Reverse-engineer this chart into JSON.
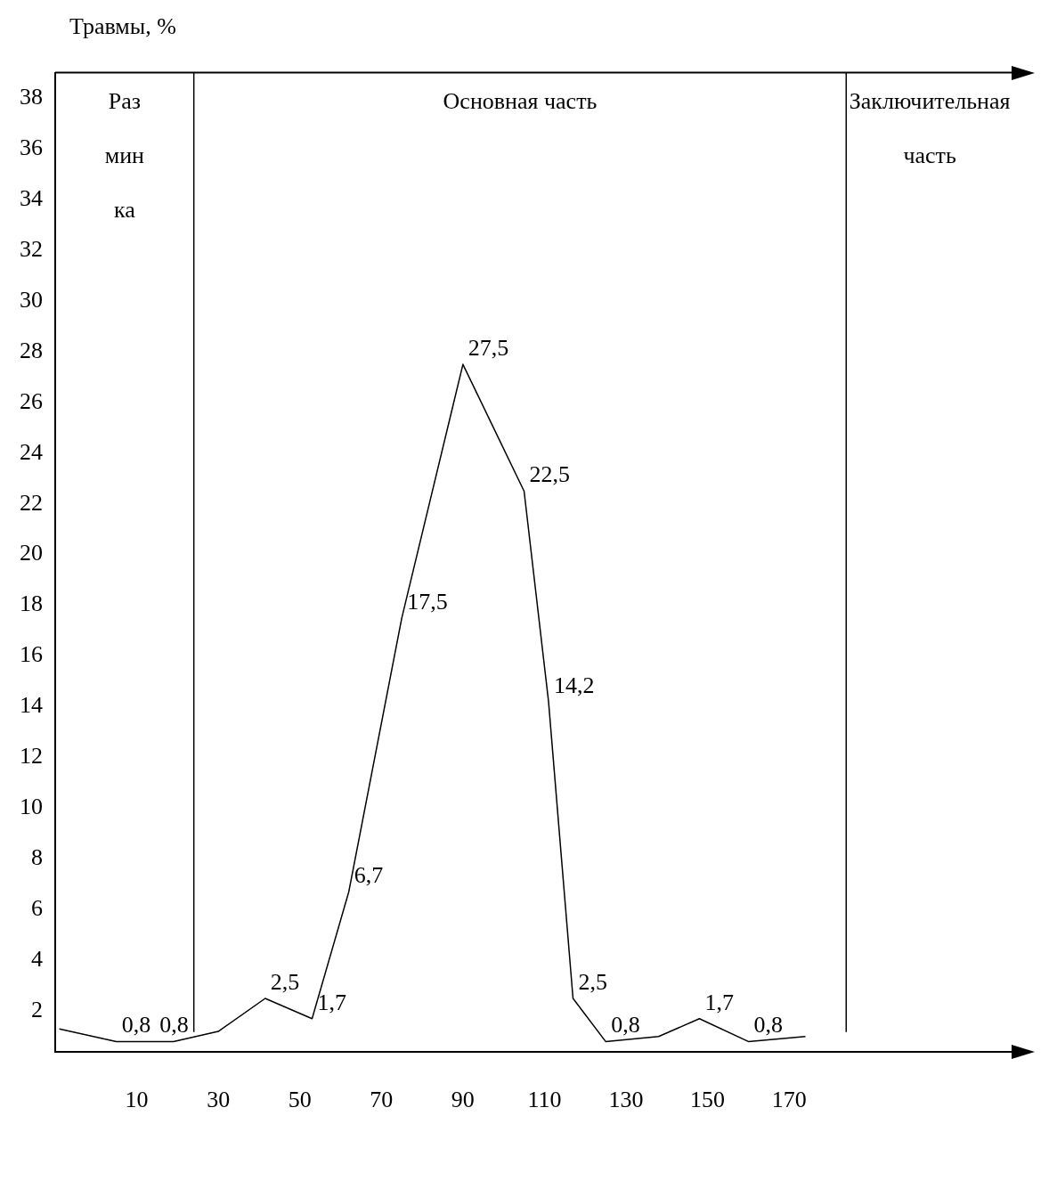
{
  "chart_data": {
    "type": "line",
    "ylabel": "Травмы, %",
    "x": [
      -9,
      5,
      19,
      30,
      41.5,
      53,
      62,
      75,
      90,
      105,
      111,
      117,
      125,
      138,
      148,
      160,
      174
    ],
    "series": [
      {
        "color": "#000000",
        "values": [
          1.3,
          0.8,
          0.8,
          1.2,
          2.5,
          1.7,
          6.7,
          17.5,
          27.5,
          22.5,
          14.2,
          2.5,
          0.8,
          1,
          1.7,
          0.8,
          1
        ],
        "value_labels": [
          null,
          "0,8",
          "0,8",
          null,
          "2,5",
          "1,7",
          "6,7",
          "17,5",
          "27,5",
          "22,5",
          "14,2",
          "2,5",
          "0,8",
          null,
          "1,7",
          "0,8",
          null
        ]
      }
    ],
    "xlim": [
      -10,
      225
    ],
    "xticks": [
      10,
      30,
      50,
      70,
      90,
      110,
      130,
      150,
      170
    ],
    "ylim": [
      0.4,
      39
    ],
    "yticks": [
      2,
      4,
      6,
      8,
      10,
      12,
      14,
      16,
      18,
      20,
      22,
      24,
      26,
      28,
      30,
      32,
      34,
      36,
      38
    ],
    "ref_lines": [
      {
        "axis": "x",
        "value": 24,
        "color": "#000000"
      },
      {
        "axis": "x",
        "value": 184,
        "color": "#000000"
      }
    ],
    "annotations": [
      "Раз мин ка",
      "Основная часть",
      "Заключительная часть"
    ],
    "grid": false,
    "legend": false,
    "marker": "none",
    "line_style": "solid"
  }
}
